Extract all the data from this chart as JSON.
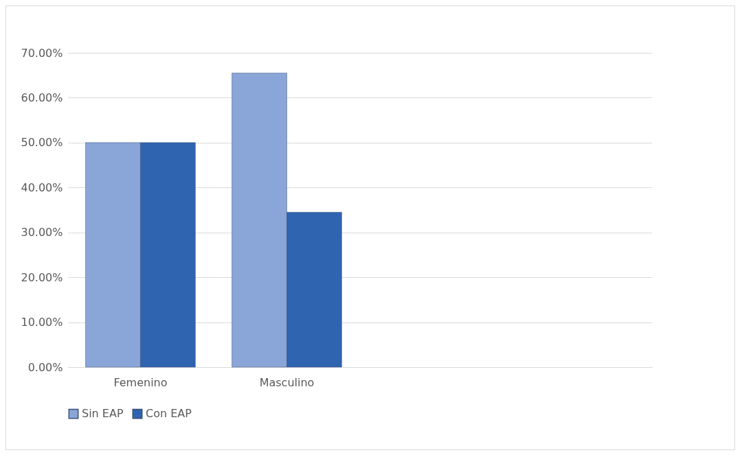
{
  "chart_data": {
    "type": "bar",
    "categories": [
      "Femenino",
      "Masculino",
      null,
      null
    ],
    "series": [
      {
        "name": "Sin EAP",
        "color": "#8aa6d8",
        "values": [
          50,
          65.5,
          null,
          null
        ]
      },
      {
        "name": "Con EAP",
        "color": "#2f64b0",
        "values": [
          50,
          34.5,
          null,
          null
        ]
      }
    ],
    "ylim": [
      0,
      70
    ],
    "yticks": [
      {
        "value": 0,
        "label": "0.00%"
      },
      {
        "value": 10,
        "label": "10.00%"
      },
      {
        "value": 20,
        "label": "20.00%"
      },
      {
        "value": 30,
        "label": "30.00%"
      },
      {
        "value": 40,
        "label": "40.00%"
      },
      {
        "value": 50,
        "label": "50.00%"
      },
      {
        "value": 60,
        "label": "60.00%"
      },
      {
        "value": 70,
        "label": "70.00%"
      }
    ],
    "grid": "y",
    "legend": "bottom"
  }
}
